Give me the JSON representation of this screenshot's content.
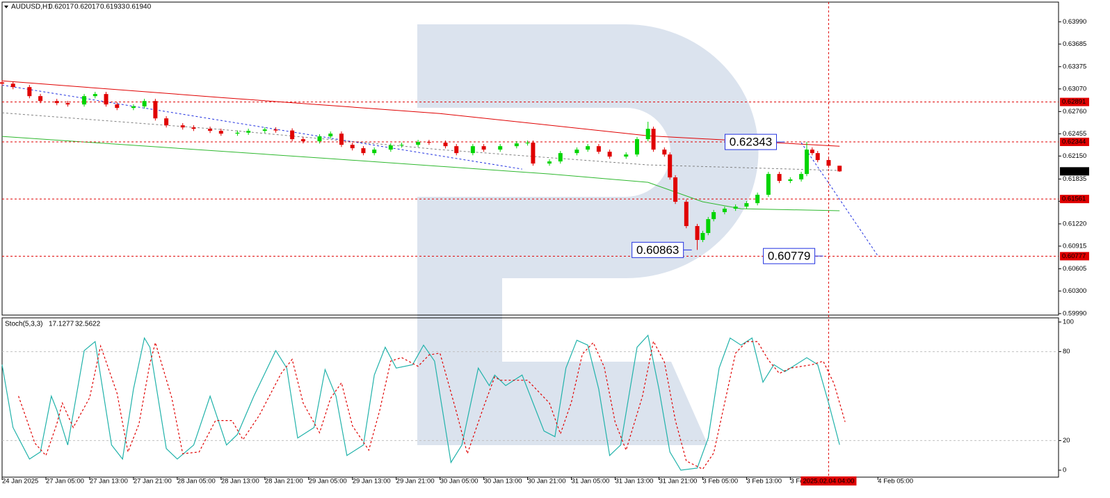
{
  "chart_data": [
    {
      "type": "candlestick",
      "title": "AUDUSD,H1",
      "x": [
        0,
        2,
        5,
        7,
        10,
        12,
        15,
        17,
        19,
        21,
        24,
        26,
        28,
        30,
        33,
        35,
        38,
        40,
        43,
        45,
        48,
        50,
        53,
        55,
        58,
        60,
        62,
        64,
        66,
        68,
        71,
        73,
        76,
        78,
        81,
        83,
        86,
        88,
        91,
        94,
        96,
        97,
        100,
        102,
        105,
        107,
        109,
        111,
        114,
        116,
        118,
        119,
        121,
        122,
        123,
        125,
        127,
        128,
        129,
        130,
        132,
        134,
        136,
        138,
        140,
        142,
        144,
        146,
        147,
        148,
        149,
        151,
        153
      ],
      "open": [
        0.6316,
        0.63142,
        0.63095,
        0.62971,
        0.62904,
        0.62876,
        0.62857,
        0.62971,
        0.63,
        0.62857,
        0.62809,
        0.6283,
        0.62904,
        0.62666,
        0.62571,
        0.62542,
        0.62523,
        0.62495,
        0.62457,
        0.6247,
        0.62495,
        0.62514,
        0.625,
        0.62381,
        0.62352,
        0.62419,
        0.62457,
        0.62304,
        0.62257,
        0.6219,
        0.62238,
        0.62295,
        0.62304,
        0.62342,
        0.62333,
        0.62285,
        0.6219,
        0.62285,
        0.62238,
        0.62285,
        0.62323,
        0.62333,
        0.62047,
        0.62076,
        0.6219,
        0.62238,
        0.62285,
        0.62209,
        0.62142,
        0.62171,
        0.62381,
        0.62523,
        0.62238,
        0.62171,
        0.61857,
        0.61523,
        0.6119,
        0.61,
        0.61095,
        0.61285,
        0.61381,
        0.61428,
        0.61457,
        0.61504,
        0.61619,
        0.61904,
        0.61809,
        0.6183,
        0.61904,
        0.62238,
        0.6219,
        0.62095,
        0.62017
      ],
      "high": [
        0.6319,
        0.63172,
        0.63125,
        0.63001,
        0.62934,
        0.62906,
        0.63001,
        0.6303,
        0.6303,
        0.62887,
        0.6286,
        0.62934,
        0.62934,
        0.62696,
        0.62601,
        0.62572,
        0.62553,
        0.62525,
        0.625,
        0.62525,
        0.62544,
        0.62544,
        0.6253,
        0.62411,
        0.62449,
        0.62487,
        0.62487,
        0.62334,
        0.62287,
        0.62268,
        0.62325,
        0.62334,
        0.62372,
        0.62372,
        0.62363,
        0.62315,
        0.62315,
        0.62315,
        0.62315,
        0.62353,
        0.62363,
        0.62363,
        0.62106,
        0.6222,
        0.62268,
        0.62315,
        0.62315,
        0.62239,
        0.62201,
        0.62411,
        0.6262,
        0.62553,
        0.62268,
        0.62201,
        0.61887,
        0.61553,
        0.6122,
        0.61125,
        0.61315,
        0.61411,
        0.61458,
        0.61487,
        0.61534,
        0.61649,
        0.61934,
        0.61934,
        0.6186,
        0.61934,
        0.62343,
        0.62268,
        0.6222,
        0.62125,
        0.62017
      ],
      "low": [
        0.63112,
        0.63065,
        0.62941,
        0.62874,
        0.62846,
        0.62827,
        0.62827,
        0.62941,
        0.62827,
        0.62779,
        0.62779,
        0.628,
        0.62636,
        0.62541,
        0.62512,
        0.62493,
        0.62465,
        0.62427,
        0.62427,
        0.6244,
        0.62465,
        0.6247,
        0.62351,
        0.62322,
        0.62322,
        0.62389,
        0.62274,
        0.62227,
        0.6216,
        0.6216,
        0.62208,
        0.62265,
        0.62274,
        0.62303,
        0.62255,
        0.6216,
        0.6216,
        0.62208,
        0.62208,
        0.62255,
        0.62293,
        0.62017,
        0.62017,
        0.62046,
        0.6216,
        0.62208,
        0.62179,
        0.62112,
        0.62112,
        0.62141,
        0.62351,
        0.62208,
        0.62141,
        0.61827,
        0.61493,
        0.6116,
        0.60863,
        0.6097,
        0.61065,
        0.61255,
        0.61351,
        0.61398,
        0.61427,
        0.61474,
        0.61589,
        0.61779,
        0.61779,
        0.618,
        0.61874,
        0.6216,
        0.62065,
        0.61987,
        0.61933
      ],
      "close": [
        0.63142,
        0.63095,
        0.62971,
        0.62904,
        0.62876,
        0.62857,
        0.62971,
        0.63,
        0.62857,
        0.62809,
        0.6283,
        0.62904,
        0.62666,
        0.62571,
        0.62542,
        0.62523,
        0.62495,
        0.62457,
        0.6247,
        0.62495,
        0.62514,
        0.625,
        0.62381,
        0.62352,
        0.62419,
        0.62457,
        0.62304,
        0.62257,
        0.6219,
        0.62238,
        0.62295,
        0.62304,
        0.62342,
        0.62333,
        0.62285,
        0.6219,
        0.62285,
        0.62238,
        0.62285,
        0.62323,
        0.62333,
        0.62047,
        0.62076,
        0.6219,
        0.62238,
        0.62285,
        0.62209,
        0.62142,
        0.62171,
        0.62381,
        0.62523,
        0.62238,
        0.62171,
        0.61857,
        0.61523,
        0.6119,
        0.61,
        0.61095,
        0.61285,
        0.61381,
        0.61428,
        0.61457,
        0.61504,
        0.61619,
        0.61904,
        0.61809,
        0.6183,
        0.61904,
        0.62238,
        0.6219,
        0.62095,
        0.62017,
        0.6194
      ],
      "up_color": "#00d400",
      "down_color": "#e00000",
      "xlim": [
        0,
        193
      ],
      "xticks": [
        {
          "value": 0,
          "label": "24 Jan 2025"
        },
        {
          "value": 8,
          "label": "27 Jan 05:00"
        },
        {
          "value": 16,
          "label": "27 Jan 13:00"
        },
        {
          "value": 24,
          "label": "27 Jan 21:00"
        },
        {
          "value": 32,
          "label": "28 Jan 05:00"
        },
        {
          "value": 40,
          "label": "28 Jan 13:00"
        },
        {
          "value": 48,
          "label": "28 Jan 21:00"
        },
        {
          "value": 56,
          "label": "29 Jan 05:00"
        },
        {
          "value": 64,
          "label": "29 Jan 13:00"
        },
        {
          "value": 72,
          "label": "29 Jan 21:00"
        },
        {
          "value": 80,
          "label": "30 Jan 05:00"
        },
        {
          "value": 88,
          "label": "30 Jan 13:00"
        },
        {
          "value": 96,
          "label": "30 Jan 21:00"
        },
        {
          "value": 104,
          "label": "31 Jan 05:00"
        },
        {
          "value": 112,
          "label": "31 Jan 13:00"
        },
        {
          "value": 120,
          "label": "31 Jan 21:00"
        },
        {
          "value": 128,
          "label": "3 Feb 05:00"
        },
        {
          "value": 136,
          "label": "3 Feb 13:00"
        },
        {
          "value": 144,
          "label": "3 Feb 21:00"
        },
        {
          "value": 160,
          "label": "4 Feb 05:00"
        }
      ],
      "ylim": [
        0.5997,
        0.6426
      ],
      "yticks": [
        {
          "value": 0.6399,
          "label": "0.63990"
        },
        0.63685,
        0.63375,
        {
          "value": 0.6307,
          "label": "0.63070"
        },
        {
          "value": 0.6276,
          "label": "0.62760"
        },
        0.62455,
        {
          "value": 0.6215,
          "label": "0.62150"
        },
        0.61835,
        {
          "value": 0.6153,
          "label": "0.61530"
        },
        {
          "value": 0.6122,
          "label": "0.61220"
        },
        0.60915,
        0.60605,
        {
          "value": 0.603,
          "label": "0.60300"
        },
        {
          "value": 0.5999,
          "label": "0.59990"
        }
      ],
      "price_levels": [
        0.62891,
        0.62344,
        0.61561,
        0.60777
      ],
      "level_color": "#e00000",
      "current_price": {
        "value": 0.6194,
        "label": "0.61940"
      },
      "crosshair": {
        "value": 151,
        "label": "2025.02.04 04:00"
      },
      "moving_averages": [
        {
          "color": "#e00000",
          "dashed": false,
          "x": [
            0,
            40,
            80,
            118,
            153
          ],
          "values": [
            0.6318,
            0.62952,
            0.62733,
            0.62428,
            0.62285
          ]
        },
        {
          "color": "#2eb82e",
          "dashed": false,
          "x": [
            0,
            60,
            100,
            118,
            128,
            135,
            153
          ],
          "values": [
            0.62419,
            0.62114,
            0.61904,
            0.6179,
            0.61523,
            0.61428,
            0.614
          ]
        },
        {
          "color": "#808080",
          "dashed": true,
          "x": [
            0,
            40,
            80,
            118,
            153
          ],
          "values": [
            0.62742,
            0.62514,
            0.62238,
            0.62028,
            0.61952
          ]
        }
      ],
      "trend_color": "#2030e0",
      "trend_lines": [
        {
          "x": [
            0,
            95
          ],
          "values": [
            0.63123,
            0.61971
          ]
        },
        {
          "x": [
            146,
            160
          ],
          "values": [
            0.62333,
            0.60781
          ]
        }
      ],
      "annotations": [
        {
          "value": 0.62343,
          "x": 143
        },
        {
          "value": 0.60863,
          "x": 126
        },
        {
          "value": 0.60779,
          "x": 150
        }
      ]
    },
    {
      "type": "line",
      "title": "Stoch(5,3,3)",
      "xlim": [
        0,
        193
      ],
      "ylim": [
        -4.7,
        102.8
      ],
      "yticks": [
        100,
        80,
        20,
        0
      ],
      "levels": [
        80,
        20
      ],
      "series": [
        {
          "color": "#20b2aa",
          "dashed": false,
          "x": [
            0,
            2,
            5,
            7,
            9,
            10,
            12,
            15,
            17,
            20,
            22,
            24,
            26,
            27,
            30,
            32,
            35,
            38,
            41,
            43,
            46,
            50,
            52,
            54,
            57,
            59,
            61,
            63,
            66,
            68,
            70,
            72,
            75,
            77,
            79,
            82,
            84,
            87,
            89,
            90,
            92,
            95,
            99,
            101,
            103,
            105,
            107,
            109,
            111,
            113,
            116,
            118,
            120,
            122,
            124,
            127,
            129,
            131,
            133,
            135,
            137,
            139,
            141,
            143,
            147,
            149,
            151,
            153
          ],
          "values": [
            71.2,
            28.8,
            7.5,
            12.3,
            50,
            40.6,
            17,
            80.7,
            86.8,
            17,
            7.5,
            54.7,
            89.2,
            83,
            14.6,
            7.5,
            17,
            50,
            17,
            24.1,
            50,
            80.7,
            68.9,
            21.7,
            28.8,
            67.9,
            50,
            9.9,
            17,
            64.2,
            83,
            68.9,
            71.2,
            84.4,
            73.6,
            5.2,
            17,
            68.9,
            57.1,
            64.2,
            57.1,
            64.2,
            26.4,
            22.6,
            68.9,
            87.7,
            84.4,
            54.7,
            9.9,
            17,
            83,
            91,
            54.7,
            12.3,
            0,
            1.4,
            21.7,
            68.9,
            89.2,
            84.4,
            89.2,
            59.4,
            71.2,
            66.5,
            75.9,
            71.2,
            45.3,
            17.1277
          ]
        },
        {
          "color": "#e00000",
          "dashed": true,
          "x": [
            3,
            6,
            8,
            10,
            11,
            13,
            16,
            18,
            21,
            23,
            25,
            27,
            28,
            31,
            33,
            36,
            39,
            42,
            44,
            47,
            51,
            53,
            55,
            58,
            60,
            62,
            64,
            67,
            69,
            71,
            73,
            76,
            78,
            80,
            83,
            85,
            88,
            90,
            91,
            93,
            96,
            100,
            102,
            104,
            106,
            108,
            110,
            112,
            114,
            117,
            119,
            121,
            123,
            125,
            128,
            130,
            132,
            134,
            136,
            138,
            140,
            142,
            144,
            148,
            150,
            152,
            154
          ],
          "values": [
            50,
            18.2,
            9.9,
            31.2,
            45.3,
            28.8,
            48.9,
            83.8,
            51.9,
            12.3,
            31.1,
            72,
            86.1,
            48.8,
            11.1,
            12.3,
            33.5,
            33.5,
            20.6,
            37.1,
            65.4,
            74.8,
            45.3,
            25.3,
            48.4,
            59,
            30,
            13.5,
            40.6,
            73.6,
            76,
            70.1,
            77.8,
            79,
            39.4,
            11.1,
            43,
            63,
            60.7,
            60.7,
            60.7,
            45.3,
            24.5,
            45.8,
            78.3,
            86.1,
            69.6,
            32.3,
            13.5,
            50,
            87,
            72.9,
            33.5,
            6.2,
            0.7,
            11.6,
            45.3,
            79,
            86.8,
            86.8,
            74.3,
            65.3,
            68.9,
            71.2,
            73.6,
            58.3,
            32.5622
          ]
        }
      ]
    }
  ]
}
